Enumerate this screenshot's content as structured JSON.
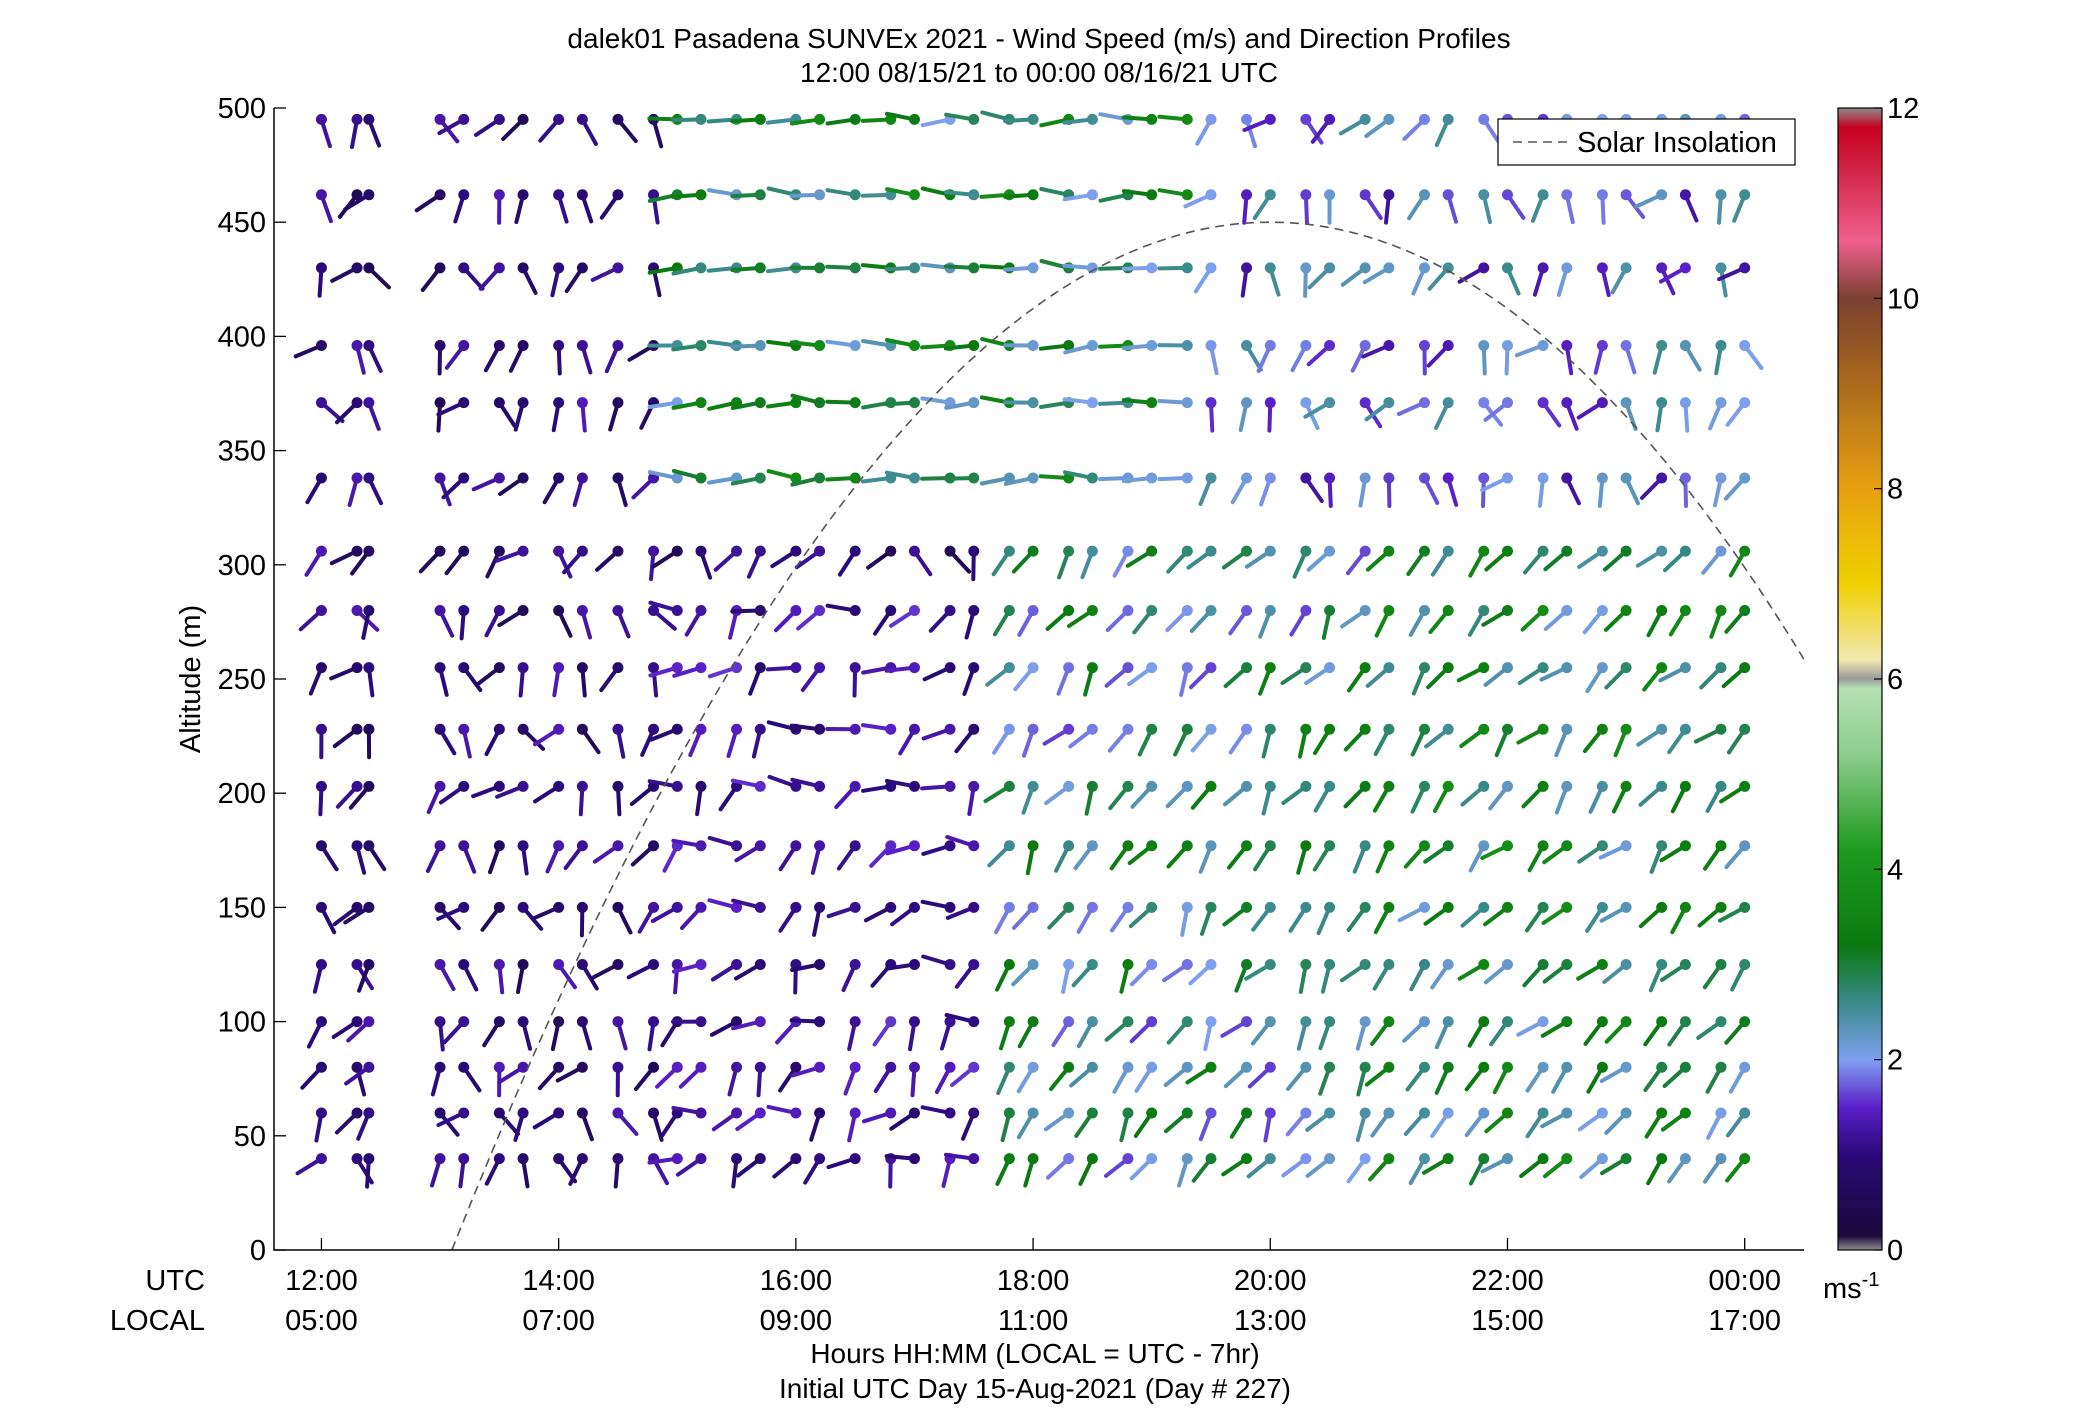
{
  "chart_data": {
    "type": "wind barb profile",
    "title_line1": "dalek01 Pasadena SUNVEx 2021 - Wind Speed (m/s) and Direction Profiles",
    "title_line2": "12:00 08/15/21 to 00:00 08/16/21  UTC",
    "ylabel": "Altitude (m)",
    "ylim": [
      0,
      500
    ],
    "yticks": [
      "0",
      "50",
      "100",
      "150",
      "200",
      "250",
      "300",
      "350",
      "400",
      "450",
      "500"
    ],
    "x_range_hours": [
      11.6,
      24.5
    ],
    "xtick_hours": [
      12,
      14,
      16,
      18,
      20,
      22,
      24
    ],
    "xticks_utc": [
      "12:00",
      "14:00",
      "16:00",
      "18:00",
      "20:00",
      "22:00",
      "00:00"
    ],
    "xticks_local": [
      "05:00",
      "07:00",
      "09:00",
      "11:00",
      "13:00",
      "15:00",
      "17:00"
    ],
    "row_label_utc": "UTC",
    "row_label_local": "LOCAL",
    "xlabel": "Hours HH:MM  (LOCAL = UTC - 7hr)",
    "footer": "Initial UTC Day 15-Aug-2021 (Day # 227)",
    "legend": {
      "label": "Solar Insolation",
      "style": "dashed",
      "color": "#555555",
      "placement": "top-right"
    },
    "solar_insolation": {
      "start_hour": 13.1,
      "peak_hour": 20.0,
      "peak_altitude": 450
    },
    "colorbar": {
      "min": 0,
      "max": 12,
      "ticks": [
        "0",
        "2",
        "4",
        "6",
        "8",
        "10",
        "12"
      ],
      "unit": "ms",
      "unit_sup": "-1",
      "stops": [
        {
          "v": 0.0,
          "c": "#8c8c8c"
        },
        {
          "v": 0.15,
          "c": "#1b0a3c"
        },
        {
          "v": 1.0,
          "c": "#2a0a7a"
        },
        {
          "v": 1.5,
          "c": "#5a1fc8"
        },
        {
          "v": 2.0,
          "c": "#7fa0f0"
        },
        {
          "v": 2.6,
          "c": "#3a8a8a"
        },
        {
          "v": 3.2,
          "c": "#0a7a10"
        },
        {
          "v": 4.2,
          "c": "#1e9a1e"
        },
        {
          "v": 5.2,
          "c": "#8ccd8c"
        },
        {
          "v": 5.9,
          "c": "#b4e0b4"
        },
        {
          "v": 6.0,
          "c": "#9a9a9a"
        },
        {
          "v": 6.2,
          "c": "#f0e8b0"
        },
        {
          "v": 7.0,
          "c": "#f0d000"
        },
        {
          "v": 8.0,
          "c": "#e8a010"
        },
        {
          "v": 9.3,
          "c": "#a06020"
        },
        {
          "v": 10.0,
          "c": "#7a4030"
        },
        {
          "v": 10.6,
          "c": "#f06090"
        },
        {
          "v": 11.4,
          "c": "#d02040"
        },
        {
          "v": 11.8,
          "c": "#c80020"
        },
        {
          "v": 12.0,
          "c": "#8c8c8c"
        }
      ]
    },
    "barb_times_hours": [
      12.0,
      12.3,
      12.4,
      13.0,
      13.2,
      13.5,
      13.7,
      14.0,
      14.2,
      14.5,
      14.8,
      15.0,
      15.2,
      15.5,
      15.7,
      16.0,
      16.2,
      16.5,
      16.8,
      17.0,
      17.3,
      17.5,
      17.8,
      18.0,
      18.3,
      18.5,
      18.8,
      19.0,
      19.3,
      19.5,
      19.8,
      20.0,
      20.3,
      20.5,
      20.8,
      21.0,
      21.3,
      21.5,
      21.8,
      22.0,
      22.3,
      22.5,
      22.8,
      23.0,
      23.3,
      23.5,
      23.8,
      24.0
    ],
    "altitudes_m": [
      40,
      60,
      80,
      100,
      125,
      150,
      177,
      203,
      228,
      255,
      280,
      306,
      338,
      371,
      396,
      430,
      462,
      495
    ],
    "wind_regimes": [
      {
        "hour_from": 11.9,
        "hour_to": 14.9,
        "alt_from": 0,
        "alt_to": 500,
        "speed": [
          0.5,
          1.4
        ],
        "dir_from_deg": [
          130,
          250
        ]
      },
      {
        "hour_from": 14.9,
        "hour_to": 17.8,
        "alt_from": 0,
        "alt_to": 290,
        "speed": [
          0.8,
          1.6
        ],
        "dir_from_deg": [
          180,
          290
        ]
      },
      {
        "hour_from": 15.0,
        "hour_to": 19.5,
        "alt_from": 320,
        "alt_to": 500,
        "speed": [
          2.0,
          3.8
        ],
        "dir_from_deg": [
          255,
          285
        ]
      },
      {
        "hour_from": 17.8,
        "hour_to": 20.9,
        "alt_from": 0,
        "alt_to": 320,
        "speed": [
          1.6,
          3.4
        ],
        "dir_from_deg": [
          190,
          240
        ]
      },
      {
        "hour_from": 19.5,
        "hour_to": 24.1,
        "alt_from": 320,
        "alt_to": 500,
        "speed": [
          1.2,
          2.6
        ],
        "dir_from_deg": [
          140,
          250
        ]
      },
      {
        "hour_from": 20.9,
        "hour_to": 24.1,
        "alt_from": 0,
        "alt_to": 320,
        "speed": [
          2.0,
          3.8
        ],
        "dir_from_deg": [
          200,
          245
        ]
      }
    ]
  }
}
